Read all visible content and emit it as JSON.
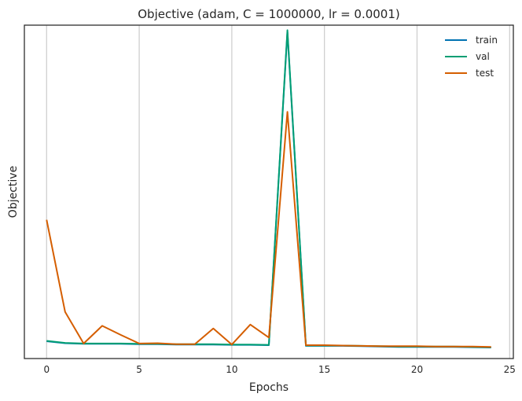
{
  "chart_data": {
    "type": "line",
    "title": "Objective (adam, C = 1000000, lr = 0.0001)",
    "xlabel": "Epochs",
    "ylabel": "Objective",
    "xlim": [
      -1.2,
      25.2
    ],
    "ylim": [
      0,
      1.0
    ],
    "xticks": [
      0,
      5,
      10,
      15,
      20,
      25
    ],
    "xtick_labels": [
      "0",
      "5",
      "10",
      "15",
      "20",
      "25"
    ],
    "yticks": [],
    "grid": "vertical",
    "legend": "top-right",
    "x": [
      0,
      1,
      2,
      3,
      4,
      5,
      6,
      7,
      8,
      9,
      10,
      11,
      12,
      13,
      14,
      15,
      16,
      17,
      18,
      19,
      20,
      21,
      22,
      23,
      24
    ],
    "series": [
      {
        "name": "train",
        "color": "#0072b2",
        "values": [
          0.052,
          0.046,
          0.044,
          0.044,
          0.044,
          0.043,
          0.043,
          0.042,
          0.042,
          0.042,
          0.041,
          0.041,
          0.04,
          0.98,
          0.038,
          0.038,
          0.038,
          0.037,
          0.036,
          0.035,
          0.035,
          0.035,
          0.035,
          0.034,
          0.033
        ]
      },
      {
        "name": "val",
        "color": "#009e73",
        "values": [
          0.053,
          0.047,
          0.045,
          0.045,
          0.045,
          0.044,
          0.044,
          0.043,
          0.043,
          0.043,
          0.042,
          0.042,
          0.041,
          0.985,
          0.039,
          0.039,
          0.039,
          0.038,
          0.037,
          0.036,
          0.036,
          0.036,
          0.036,
          0.035,
          0.034
        ]
      },
      {
        "name": "test",
        "color": "#d55e00",
        "values": [
          0.416,
          0.14,
          0.045,
          0.098,
          0.071,
          0.045,
          0.046,
          0.043,
          0.043,
          0.09,
          0.042,
          0.102,
          0.063,
          0.74,
          0.04,
          0.04,
          0.039,
          0.038,
          0.037,
          0.037,
          0.037,
          0.036,
          0.036,
          0.036,
          0.035
        ]
      }
    ]
  }
}
